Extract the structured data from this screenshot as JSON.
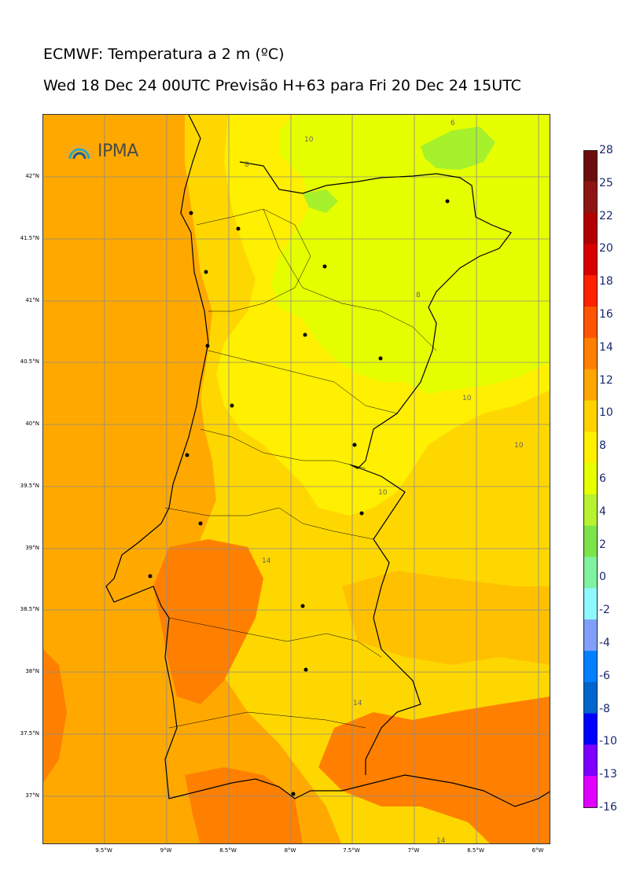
{
  "header": {
    "title": "ECMWF: Temperatura a 2 m (ºC)",
    "subtitle": "Wed 18 Dec 24 00UTC Previsão H+63 para Fri 20 Dec 24 15UTC"
  },
  "logo": {
    "text": "IPMA",
    "icon": "ipma-rainbow-logo"
  },
  "map": {
    "lat_labels": [
      "42°N",
      "41.5°N",
      "41°N",
      "40.5°N",
      "40°N",
      "39.5°N",
      "39°N",
      "38.5°N",
      "38°N",
      "37.5°N",
      "37°N"
    ],
    "lon_labels": [
      "9.5°W",
      "9°W",
      "8.5°W",
      "8°W",
      "7.5°W",
      "7°W",
      "6.5°W",
      "6°W"
    ],
    "contour_labels": [
      "6",
      "10",
      "8",
      "8",
      "10",
      "10",
      "10",
      "14",
      "14",
      "14"
    ]
  },
  "colorbar": {
    "ticks": [
      "28",
      "25",
      "22",
      "20",
      "18",
      "16",
      "14",
      "12",
      "10",
      "8",
      "6",
      "4",
      "2",
      "0",
      "-2",
      "-4",
      "-6",
      "-8",
      "-10",
      "-13",
      "-16"
    ],
    "colors": [
      "#6b0e0e",
      "#8f1414",
      "#b30000",
      "#d90000",
      "#ff2200",
      "#ff5500",
      "#ff7f00",
      "#ffa500",
      "#ffd200",
      "#ffef00",
      "#e8ff00",
      "#b7f230",
      "#7de34a",
      "#7ff2a2",
      "#8ff8ff",
      "#7f9ff8",
      "#0080ff",
      "#0066cc",
      "#0000ff",
      "#7d00ff",
      "#e100ff"
    ]
  },
  "colors": {
    "sea": "#ffa900",
    "temp_8_10": "#ffef00",
    "temp_10_12": "#ffd700",
    "temp_6_8": "#e5ff00",
    "temp_4_6": "#a6f02c",
    "temp_14_16": "#ff8000"
  }
}
